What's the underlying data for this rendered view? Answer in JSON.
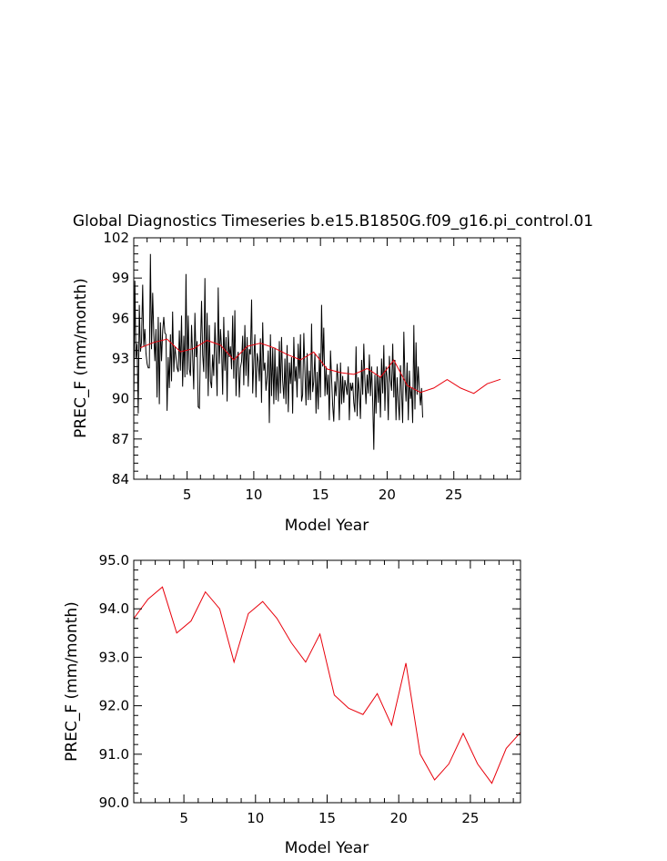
{
  "title": "Global Diagnostics Timeseries b.e15.B1850G.f09_g16.pi_control.01",
  "colors": {
    "monthly": "#000000",
    "annual": "#e8000b",
    "axis": "#000000"
  },
  "chart_data": [
    {
      "type": "line",
      "xlabel": "Model Year",
      "ylabel": "PREC_F (mm/month)",
      "xlim": [
        1,
        30
      ],
      "ylim": [
        84,
        102
      ],
      "xticks": [
        5,
        10,
        15,
        20,
        25
      ],
      "yticks": [
        84,
        87,
        90,
        93,
        96,
        99,
        102
      ],
      "ytick_labels": [
        "84",
        "87",
        "90",
        "93",
        "96",
        "99",
        "102"
      ],
      "series": [
        {
          "color": "#000000",
          "x_start": 1.0,
          "x_step": 0.0833333,
          "values": [
            89.6,
            98.8,
            93.0,
            94.1,
            88.9,
            97.0,
            93.5,
            94.2,
            98.5,
            93.9,
            95.2,
            93.4,
            92.6,
            92.3,
            92.3,
            100.8,
            93.7,
            97.9,
            94.8,
            92.8,
            95.2,
            90.1,
            96.1,
            89.6,
            95.7,
            92.8,
            95.1,
            96.1,
            94.9,
            94.8,
            89.1,
            93.1,
            90.8,
            94.8,
            91.3,
            96.5,
            92.0,
            93.9,
            93.1,
            92.3,
            92.0,
            95.1,
            92.1,
            96.2,
            90.9,
            94.7,
            91.6,
            99.3,
            91.8,
            96.2,
            92.2,
            91.7,
            95.5,
            93.2,
            90.7,
            96.4,
            93.1,
            94.3,
            89.4,
            89.3,
            93.8,
            97.3,
            93.3,
            92.0,
            99.0,
            91.5,
            96.4,
            90.2,
            95.5,
            91.3,
            90.8,
            93.3,
            91.7,
            95.7,
            93.2,
            90.2,
            98.3,
            92.6,
            95.2,
            93.8,
            90.3,
            96.1,
            92.1,
            94.6,
            89.8,
            95.1,
            93.1,
            93.9,
            92.2,
            96.2,
            91.5,
            96.6,
            90.2,
            92.9,
            93.5,
            90.1,
            92.3,
            92.8,
            94.7,
            91.0,
            95.5,
            91.7,
            94.6,
            90.9,
            93.7,
            93.3,
            97.4,
            90.4,
            92.8,
            94.8,
            90.1,
            93.4,
            92.8,
            91.3,
            94.5,
            89.7,
            95.7,
            92.1,
            92.7,
            90.6,
            91.7,
            93.6,
            88.2,
            94.8,
            90.2,
            93.8,
            89.6,
            93.8,
            89.9,
            92.4,
            89.8,
            94.3,
            90.4,
            94.6,
            91.4,
            90.0,
            93.0,
            89.6,
            94.0,
            89.0,
            92.7,
            91.1,
            93.1,
            88.9,
            94.6,
            91.3,
            92.4,
            90.1,
            94.1,
            91.5,
            94.8,
            89.8,
            90.3,
            94.9,
            92.0,
            89.5,
            93.4,
            89.9,
            92.1,
            89.9,
            95.6,
            90.5,
            91.3,
            93.4,
            88.9,
            92.0,
            89.2,
            93.4,
            90.1,
            97.0,
            92.4,
            95.3,
            90.2,
            92.4,
            90.3,
            91.8,
            88.4,
            93.6,
            91.5,
            89.5,
            88.3,
            91.3,
            90.2,
            92.6,
            91.2,
            88.4,
            92.7,
            89.6,
            91.7,
            89.7,
            91.4,
            90.9,
            90.3,
            92.4,
            88.4,
            91.2,
            90.6,
            91.2,
            89.7,
            89.0,
            93.9,
            88.7,
            91.6,
            90.5,
            88.5,
            92.9,
            90.3,
            94.1,
            91.4,
            89.6,
            91.8,
            90.4,
            93.3,
            90.2,
            92.4,
            89.8,
            86.2,
            91.8,
            88.9,
            92.4,
            89.7,
            91.7,
            88.6,
            93.0,
            90.4,
            94.0,
            89.1,
            92.4,
            91.6,
            88.4,
            93.2,
            91.4,
            90.6,
            94.1,
            90.1,
            92.9,
            88.4,
            91.6,
            89.8,
            88.4,
            92.5,
            90.5,
            88.2,
            95.0,
            91.5,
            89.8,
            92.7,
            88.4,
            92.1,
            90.0,
            90.8,
            88.2,
            95.5,
            89.2,
            94.2,
            90.3,
            92.4,
            90.6,
            89.5,
            90.8,
            88.6
          ]
        },
        {
          "color": "#e8000b",
          "x": [
            1.5,
            2.5,
            3.5,
            4.5,
            5.5,
            6.5,
            7.5,
            8.5,
            9.5,
            10.5,
            11.5,
            12.5,
            13.5,
            14.5,
            15.5,
            16.5,
            17.5,
            18.5,
            19.5,
            20.5,
            21.5,
            22.5,
            23.5,
            24.5,
            25.5,
            26.5,
            27.5,
            28.5
          ],
          "values": [
            93.8,
            94.2,
            94.45,
            93.5,
            93.75,
            94.35,
            94.0,
            92.9,
            93.9,
            94.15,
            93.8,
            93.3,
            92.9,
            93.48,
            92.22,
            91.95,
            91.82,
            92.25,
            91.6,
            92.88,
            91.0,
            90.47,
            90.8,
            91.43,
            90.8,
            90.4,
            91.12,
            91.45
          ]
        }
      ]
    },
    {
      "type": "line",
      "xlabel": "Model Year",
      "ylabel": "PREC_F (mm/month)",
      "xlim": [
        1.5,
        28.5
      ],
      "ylim": [
        90,
        95
      ],
      "xticks": [
        5,
        10,
        15,
        20,
        25
      ],
      "yticks": [
        90,
        91,
        92,
        93,
        94,
        95
      ],
      "ytick_labels": [
        "90.0",
        "91.0",
        "92.0",
        "93.0",
        "94.0",
        "95.0"
      ],
      "series": [
        {
          "color": "#e8000b",
          "x": [
            1.5,
            2.5,
            3.5,
            4.5,
            5.5,
            6.5,
            7.5,
            8.5,
            9.5,
            10.5,
            11.5,
            12.5,
            13.5,
            14.5,
            15.5,
            16.5,
            17.5,
            18.5,
            19.5,
            20.5,
            21.5,
            22.5,
            23.5,
            24.5,
            25.5,
            26.5,
            27.5,
            28.5
          ],
          "values": [
            93.8,
            94.2,
            94.45,
            93.5,
            93.75,
            94.35,
            94.0,
            92.9,
            93.9,
            94.15,
            93.8,
            93.3,
            92.9,
            93.48,
            92.22,
            91.95,
            91.82,
            92.25,
            91.6,
            92.88,
            91.0,
            90.47,
            90.8,
            91.43,
            90.8,
            90.4,
            91.12,
            91.45
          ]
        }
      ]
    }
  ]
}
